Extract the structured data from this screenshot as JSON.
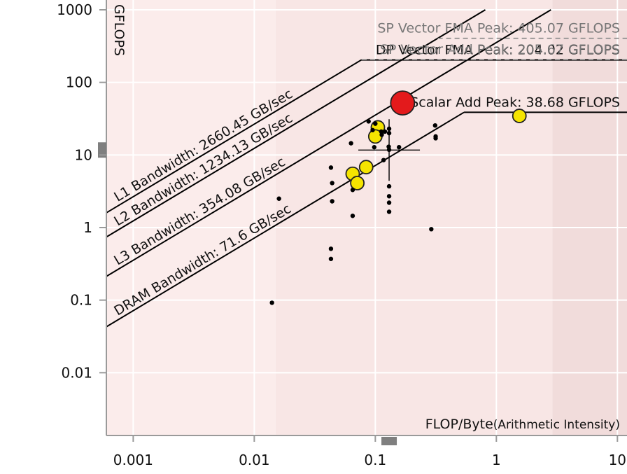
{
  "chart_data": {
    "type": "scatter",
    "title": "",
    "xlabel": "FLOP/Byte",
    "xlabel_suffix": "(Arithmetic Intensity)",
    "ylabel": "GFLOPS",
    "xscale": "log",
    "yscale": "log",
    "xlim": [
      0.0006,
      12
    ],
    "ylim": [
      0.001,
      1000
    ],
    "x_ticks": [
      {
        "value": 0.001,
        "label": "0.001"
      },
      {
        "value": 0.01,
        "label": "0.01"
      },
      {
        "value": 0.1,
        "label": "0.1"
      },
      {
        "value": 1,
        "label": "1"
      },
      {
        "value": 10,
        "label": "10"
      }
    ],
    "y_ticks": [
      {
        "value": 1000,
        "label": "1000"
      },
      {
        "value": 100,
        "label": "100"
      },
      {
        "value": 10,
        "label": "10"
      },
      {
        "value": 1,
        "label": "1"
      },
      {
        "value": 0.1,
        "label": "0.1"
      },
      {
        "value": 0.01,
        "label": "0.01"
      }
    ],
    "regions": [
      {
        "from": 0.0006,
        "to": 0.015,
        "color": "#fbeceb"
      },
      {
        "from": 0.015,
        "to": 2.9,
        "color": "#f8e6e5"
      },
      {
        "from": 2.9,
        "to": 12,
        "color": "#f1dcdb"
      }
    ],
    "bandwidth_roofs": [
      {
        "label": "L1 Bandwidth: 2660.45 GB/sec",
        "bandwidth": 2660.45,
        "color": "#000000",
        "dashed": false
      },
      {
        "label": "L2 Bandwidth: 1234.13 GB/sec",
        "bandwidth": 1234.13,
        "color": "#000000",
        "dashed": false
      },
      {
        "label": "L3 Bandwidth: 354.08 GB/sec",
        "bandwidth": 354.08,
        "color": "#000000",
        "dashed": false
      },
      {
        "label": "DRAM Bandwidth: 71.6 GB/sec",
        "bandwidth": 71.6,
        "color": "#000000",
        "dashed": false
      }
    ],
    "compute_roofs": [
      {
        "label": "SP Vector FMA Peak: 405.07 GFLOPS",
        "peak": 405.07,
        "color": "#888888",
        "dashed": true,
        "bandwidth": 1234.13
      },
      {
        "label": "DP Vector FMA Peak: 204.02 GFLOPS",
        "peak": 204.02,
        "color": "#000000",
        "dashed": false,
        "bandwidth": 2660.45
      },
      {
        "label": "SP Vector Add Peak: 205.67 GFLOPS",
        "peak": 205.67,
        "color": "#888888",
        "dashed": true,
        "bandwidth": 2660.45
      },
      {
        "label": "Scalar Add Peak: 38.68 GFLOPS",
        "peak": 38.68,
        "color": "#000000",
        "dashed": false,
        "bandwidth": 71.6
      }
    ],
    "crosshair": {
      "x": 0.13,
      "y": 11.7
    },
    "series": [
      {
        "kind": "large-red",
        "color": "#e31a1c",
        "points": [
          [
            0.168,
            52
          ]
        ]
      },
      {
        "kind": "medium-yellow",
        "color": "#f5e400",
        "points": [
          [
            0.105,
            24
          ],
          [
            0.1,
            18
          ],
          [
            0.084,
            6.8
          ],
          [
            0.065,
            5.5
          ],
          [
            0.071,
            4.1
          ],
          [
            1.55,
            34.5
          ]
        ]
      },
      {
        "kind": "small-black",
        "color": "#000000",
        "points": [
          [
            0.088,
            29
          ],
          [
            0.1,
            27
          ],
          [
            0.095,
            22
          ],
          [
            0.112,
            21
          ],
          [
            0.12,
            21
          ],
          [
            0.13,
            20
          ],
          [
            0.13,
            23
          ],
          [
            0.113,
            19
          ],
          [
            0.129,
            13
          ],
          [
            0.13,
            11.8
          ],
          [
            0.098,
            12.8
          ],
          [
            0.157,
            12.8
          ],
          [
            0.117,
            8.5
          ],
          [
            0.063,
            14.5
          ],
          [
            0.312,
            25.5
          ],
          [
            0.315,
            18
          ],
          [
            0.315,
            17
          ],
          [
            0.043,
            6.7
          ],
          [
            0.044,
            4.1
          ],
          [
            0.044,
            2.3
          ],
          [
            0.065,
            3.3
          ],
          [
            0.065,
            1.45
          ],
          [
            0.016,
            2.5
          ],
          [
            0.13,
            3.7
          ],
          [
            0.13,
            2.7
          ],
          [
            0.13,
            2.2
          ],
          [
            0.13,
            1.65
          ],
          [
            0.29,
            0.95
          ],
          [
            0.043,
            0.51
          ],
          [
            0.043,
            0.37
          ],
          [
            0.014,
            0.092
          ]
        ]
      }
    ]
  }
}
